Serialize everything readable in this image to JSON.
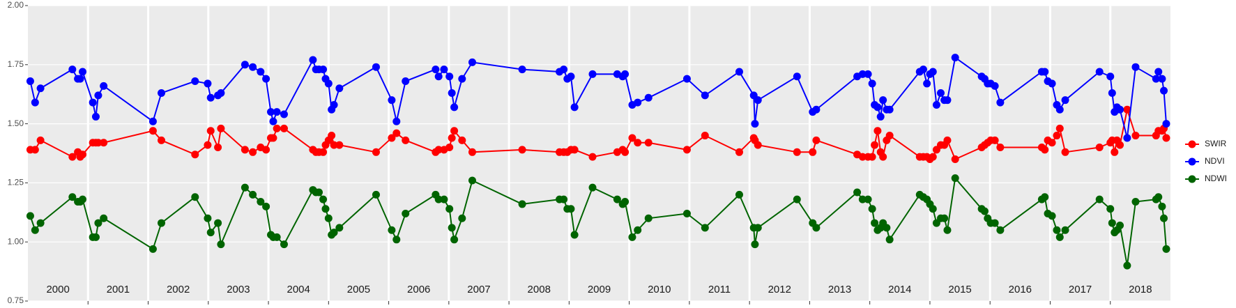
{
  "chart_data": {
    "type": "line",
    "x": [
      2000.04,
      2000.12,
      2000.21,
      2000.74,
      2000.83,
      2000.87,
      2000.91,
      2001.08,
      2001.13,
      2001.17,
      2001.26,
      2002.08,
      2002.22,
      2002.78,
      2002.99,
      2003.04,
      2003.16,
      2003.21,
      2003.61,
      2003.74,
      2003.87,
      2003.96,
      2004.04,
      2004.08,
      2004.14,
      2004.26,
      2004.74,
      2004.79,
      2004.84,
      2004.91,
      2004.95,
      2005.0,
      2005.05,
      2005.09,
      2005.18,
      2005.79,
      2006.05,
      2006.13,
      2006.28,
      2006.78,
      2006.83,
      2006.92,
      2007.01,
      2007.05,
      2007.09,
      2007.22,
      2007.39,
      2008.22,
      2008.84,
      2008.91,
      2008.97,
      2009.03,
      2009.09,
      2009.39,
      2009.8,
      2009.89,
      2009.93,
      2010.05,
      2010.14,
      2010.32,
      2010.96,
      2011.26,
      2011.83,
      2012.07,
      2012.09,
      2012.14,
      2012.79,
      2013.05,
      2013.11,
      2013.79,
      2013.88,
      2013.97,
      2014.04,
      2014.08,
      2014.13,
      2014.18,
      2014.22,
      2014.28,
      2014.33,
      2014.83,
      2014.89,
      2014.95,
      2015.0,
      2015.05,
      2015.11,
      2015.18,
      2015.24,
      2015.29,
      2015.42,
      2015.86,
      2015.91,
      2015.96,
      2016.01,
      2016.08,
      2016.17,
      2016.86,
      2016.91,
      2016.96,
      2017.03,
      2017.11,
      2017.16,
      2017.25,
      2017.82,
      2018.0,
      2018.03,
      2018.07,
      2018.11,
      2018.16,
      2018.28,
      2018.42,
      2018.76,
      2018.8,
      2018.86,
      2018.89,
      2018.93
    ],
    "series": [
      {
        "name": "SWIR",
        "color": "#ff0000",
        "values": [
          1.39,
          1.39,
          1.43,
          1.36,
          1.38,
          1.36,
          1.37,
          1.42,
          1.42,
          1.42,
          1.42,
          1.47,
          1.43,
          1.37,
          1.41,
          1.47,
          1.4,
          1.48,
          1.39,
          1.38,
          1.4,
          1.39,
          1.44,
          1.44,
          1.48,
          1.48,
          1.39,
          1.38,
          1.38,
          1.38,
          1.41,
          1.43,
          1.45,
          1.41,
          1.41,
          1.38,
          1.44,
          1.46,
          1.43,
          1.38,
          1.39,
          1.39,
          1.4,
          1.44,
          1.47,
          1.43,
          1.38,
          1.39,
          1.38,
          1.38,
          1.38,
          1.39,
          1.39,
          1.36,
          1.38,
          1.39,
          1.38,
          1.44,
          1.42,
          1.42,
          1.39,
          1.45,
          1.38,
          1.44,
          1.43,
          1.41,
          1.38,
          1.38,
          1.43,
          1.37,
          1.36,
          1.36,
          1.36,
          1.41,
          1.47,
          1.38,
          1.36,
          1.43,
          1.45,
          1.36,
          1.36,
          1.36,
          1.35,
          1.36,
          1.39,
          1.41,
          1.41,
          1.43,
          1.35,
          1.4,
          1.41,
          1.42,
          1.43,
          1.43,
          1.4,
          1.4,
          1.39,
          1.43,
          1.42,
          1.45,
          1.48,
          1.38,
          1.4,
          1.42,
          1.43,
          1.38,
          1.43,
          1.41,
          1.56,
          1.45,
          1.45,
          1.47,
          1.47,
          1.48,
          1.44
        ]
      },
      {
        "name": "NDVI",
        "color": "#0000ff",
        "values": [
          1.68,
          1.59,
          1.65,
          1.73,
          1.69,
          1.69,
          1.72,
          1.59,
          1.53,
          1.62,
          1.66,
          1.51,
          1.63,
          1.68,
          1.67,
          1.61,
          1.62,
          1.63,
          1.75,
          1.74,
          1.72,
          1.69,
          1.55,
          1.51,
          1.55,
          1.54,
          1.77,
          1.73,
          1.73,
          1.73,
          1.69,
          1.67,
          1.56,
          1.58,
          1.65,
          1.74,
          1.6,
          1.51,
          1.68,
          1.73,
          1.7,
          1.73,
          1.7,
          1.63,
          1.57,
          1.69,
          1.76,
          1.73,
          1.72,
          1.73,
          1.69,
          1.7,
          1.57,
          1.71,
          1.71,
          1.7,
          1.71,
          1.58,
          1.59,
          1.61,
          1.69,
          1.62,
          1.72,
          1.62,
          1.5,
          1.6,
          1.7,
          1.55,
          1.56,
          1.7,
          1.71,
          1.71,
          1.67,
          1.58,
          1.57,
          1.53,
          1.6,
          1.56,
          1.56,
          1.72,
          1.73,
          1.67,
          1.71,
          1.72,
          1.58,
          1.63,
          1.6,
          1.6,
          1.78,
          1.7,
          1.69,
          1.67,
          1.67,
          1.66,
          1.59,
          1.72,
          1.72,
          1.68,
          1.67,
          1.58,
          1.56,
          1.6,
          1.72,
          1.7,
          1.63,
          1.55,
          1.57,
          1.56,
          1.44,
          1.74,
          1.69,
          1.72,
          1.69,
          1.64,
          1.5
        ]
      },
      {
        "name": "NDWI",
        "color": "#006400",
        "values": [
          1.11,
          1.05,
          1.08,
          1.19,
          1.17,
          1.17,
          1.18,
          1.02,
          1.02,
          1.08,
          1.1,
          0.97,
          1.08,
          1.19,
          1.1,
          1.04,
          1.08,
          0.99,
          1.23,
          1.2,
          1.17,
          1.15,
          1.03,
          1.02,
          1.02,
          0.99,
          1.22,
          1.21,
          1.21,
          1.18,
          1.14,
          1.1,
          1.03,
          1.04,
          1.06,
          1.2,
          1.05,
          1.01,
          1.12,
          1.2,
          1.18,
          1.18,
          1.14,
          1.06,
          1.01,
          1.1,
          1.26,
          1.16,
          1.18,
          1.18,
          1.14,
          1.14,
          1.03,
          1.23,
          1.18,
          1.16,
          1.17,
          1.02,
          1.05,
          1.1,
          1.12,
          1.06,
          1.2,
          1.06,
          0.99,
          1.06,
          1.18,
          1.08,
          1.06,
          1.21,
          1.18,
          1.18,
          1.14,
          1.08,
          1.05,
          1.06,
          1.08,
          1.06,
          1.01,
          1.2,
          1.19,
          1.18,
          1.16,
          1.14,
          1.08,
          1.1,
          1.1,
          1.05,
          1.27,
          1.14,
          1.13,
          1.1,
          1.08,
          1.08,
          1.05,
          1.18,
          1.19,
          1.12,
          1.11,
          1.05,
          1.02,
          1.05,
          1.18,
          1.14,
          1.08,
          1.04,
          1.05,
          1.07,
          0.9,
          1.17,
          1.18,
          1.19,
          1.15,
          1.1,
          0.97
        ]
      }
    ],
    "year_panels": [
      "2000",
      "2001",
      "2002",
      "2003",
      "2004",
      "2005",
      "2006",
      "2007",
      "2008",
      "2009",
      "2010",
      "2011",
      "2012",
      "2013",
      "2014",
      "2015",
      "2016",
      "2017",
      "2018"
    ],
    "xlim": [
      2000,
      2019
    ],
    "xticks": [
      2001,
      2002,
      2003,
      2004,
      2005,
      2006,
      2007,
      2008,
      2009,
      2010,
      2011,
      2012,
      2013,
      2014,
      2015,
      2016,
      2017,
      2018
    ],
    "ylim": [
      0.75,
      2.0
    ],
    "yticks": [
      0.75,
      {
        "value": 1.0,
        "label": "1.00"
      },
      1.25,
      {
        "value": 1.5,
        "label": "1.50"
      },
      1.75,
      {
        "value": 2.0,
        "label": "2.00"
      }
    ],
    "grid": true,
    "legend": "right"
  }
}
